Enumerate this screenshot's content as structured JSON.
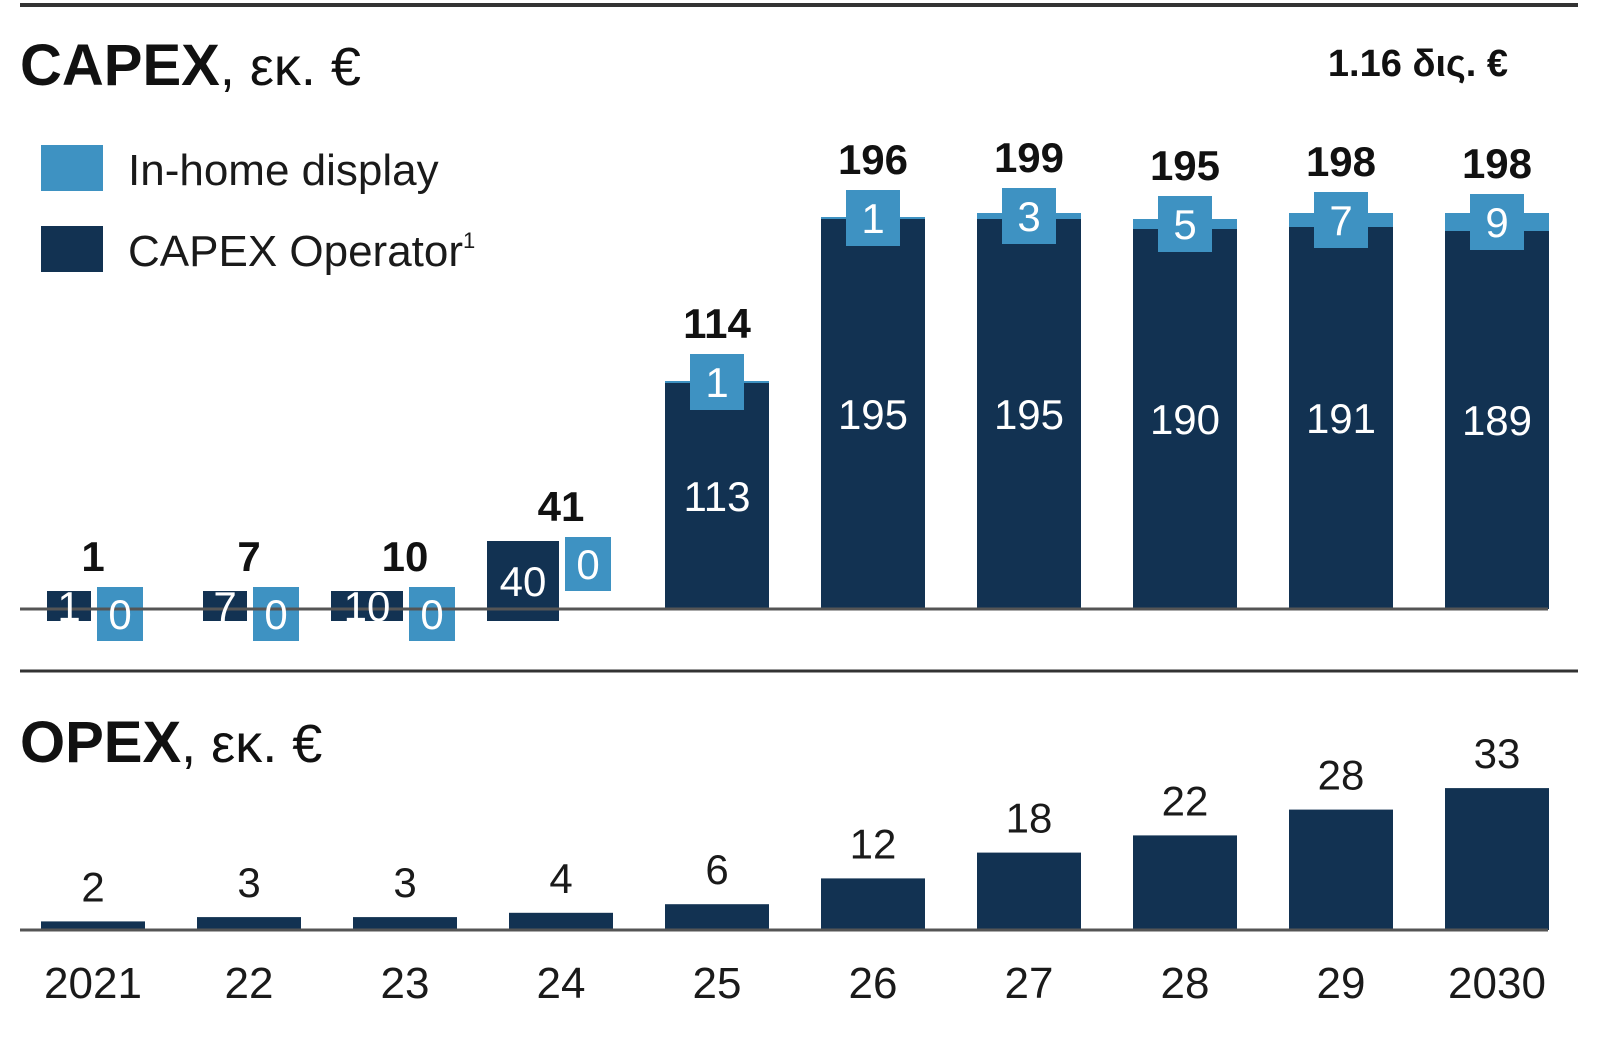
{
  "colors": {
    "operator": "#123252",
    "in_home": "#3e92c2",
    "axis": "#555555",
    "rule": "#333333"
  },
  "capex": {
    "title": "CAPEX",
    "unit": ", εκ. €",
    "total_note": "1.16 δις. €"
  },
  "opex": {
    "title": "OPEX",
    "unit": ", εκ. €"
  },
  "legend": {
    "in_home": "In-home display",
    "operator": "CAPEX Operator",
    "operator_footnote": "1"
  },
  "chart_data": [
    {
      "type": "bar",
      "stacked": true,
      "categories": [
        "2021",
        "22",
        "23",
        "24",
        "25",
        "26",
        "27",
        "28",
        "29",
        "2030"
      ],
      "series": [
        {
          "name": "CAPEX Operator",
          "values": [
            1,
            7,
            10,
            40,
            113,
            195,
            195,
            190,
            191,
            189
          ]
        },
        {
          "name": "In-home display",
          "values": [
            0,
            0,
            0,
            0,
            1,
            1,
            3,
            5,
            7,
            9
          ]
        }
      ],
      "totals": [
        1,
        7,
        10,
        41,
        114,
        196,
        199,
        195,
        198,
        198
      ],
      "legend": "top-left",
      "grid": false
    },
    {
      "type": "bar",
      "categories": [
        "2021",
        "22",
        "23",
        "24",
        "25",
        "26",
        "27",
        "28",
        "29",
        "2030"
      ],
      "values": [
        2,
        3,
        3,
        4,
        6,
        12,
        18,
        22,
        28,
        33
      ],
      "grid": false
    }
  ]
}
